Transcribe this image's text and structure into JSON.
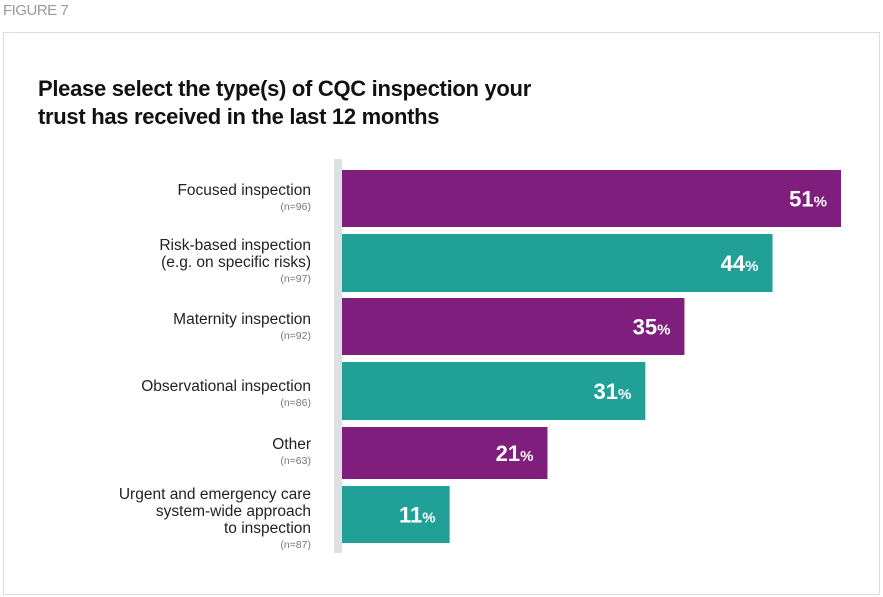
{
  "figure_label": "FIGURE 7",
  "colors": {
    "purple": "#7f1e7c",
    "teal": "#20a096",
    "axis": "#dde1e4"
  },
  "chart_data": {
    "type": "bar",
    "orientation": "horizontal",
    "title": "Please select the type(s) of CQC inspection your trust has received in the last 12 months",
    "title_lines": [
      "Please select the type(s) of CQC inspection your",
      "trust has received in the last 12 months"
    ],
    "xlabel": "",
    "ylabel": "",
    "xlim": [
      0,
      51
    ],
    "grid": false,
    "legend": "none",
    "unit": "%",
    "categories": [
      {
        "label_lines": [
          "Focused inspection"
        ],
        "n": "(n=96)",
        "value": 51,
        "color": "purple"
      },
      {
        "label_lines": [
          "Risk-based inspection",
          "(e.g. on specific risks)"
        ],
        "n": "(n=97)",
        "value": 44,
        "color": "teal"
      },
      {
        "label_lines": [
          "Maternity inspection"
        ],
        "n": "(n=92)",
        "value": 35,
        "color": "purple"
      },
      {
        "label_lines": [
          "Observational inspection"
        ],
        "n": "(n=86)",
        "value": 31,
        "color": "teal"
      },
      {
        "label_lines": [
          "Other"
        ],
        "n": "(n=63)",
        "value": 21,
        "color": "purple"
      },
      {
        "label_lines": [
          "Urgent and emergency care",
          "system-wide approach",
          "to inspection"
        ],
        "n": "(n=87)",
        "value": 11,
        "color": "teal"
      }
    ]
  }
}
